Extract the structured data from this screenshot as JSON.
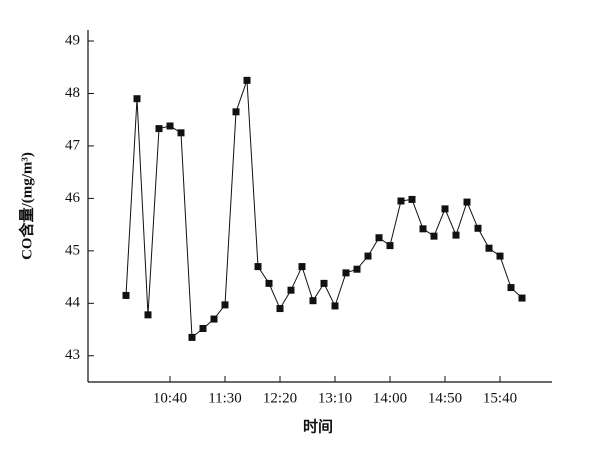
{
  "chart_data": {
    "type": "line",
    "y_label": "CO含量/(mg/m³)",
    "x_label": "时间",
    "categories": [
      null,
      null,
      null,
      null,
      "10:40",
      null,
      null,
      null,
      null,
      "11:30",
      null,
      null,
      null,
      null,
      "12:20",
      null,
      null,
      null,
      null,
      "13:10",
      null,
      null,
      null,
      null,
      "14:00",
      null,
      null,
      null,
      null,
      "14:50",
      null,
      null,
      null,
      null,
      "15:40",
      null,
      null
    ],
    "values": [
      44.15,
      47.9,
      43.78,
      47.33,
      47.38,
      47.25,
      43.35,
      43.52,
      43.7,
      43.97,
      47.65,
      48.25,
      44.7,
      44.38,
      43.9,
      44.25,
      44.7,
      44.05,
      44.38,
      43.95,
      44.58,
      44.65,
      44.9,
      45.25,
      45.1,
      45.95,
      45.98,
      45.42,
      45.28,
      45.8,
      45.3,
      45.93,
      45.43,
      45.05,
      44.9,
      44.3,
      44.1
    ],
    "color": "#111111",
    "ylim": [
      42.5,
      49
    ],
    "yticks": [
      43,
      44,
      45,
      46,
      47,
      48,
      49
    ]
  }
}
